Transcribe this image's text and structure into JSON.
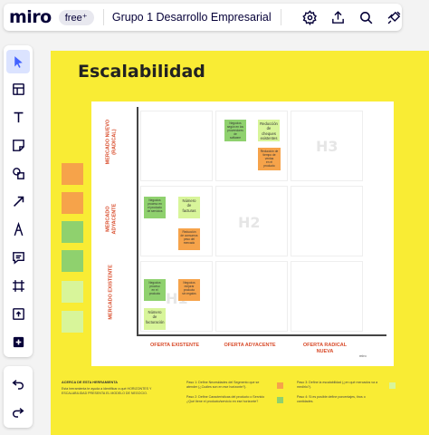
{
  "app": {
    "logo": "miro",
    "plan_badge": "free⁺",
    "board_title": "Grupo 1 Desarrollo Empresarial"
  },
  "topbar_icons": [
    "settings-icon",
    "share-upload-icon",
    "search-icon",
    "integrations-plug-icon"
  ],
  "tools": [
    "select-cursor-icon",
    "templates-icon",
    "text-tool-icon",
    "sticky-note-icon",
    "shapes-icon",
    "arrow-connector-icon",
    "pen-draw-icon",
    "comment-icon",
    "frame-icon",
    "upload-icon",
    "more-apps-icon"
  ],
  "history": [
    "undo-icon",
    "redo-icon"
  ],
  "frame": {
    "title": "Escalabilidad",
    "legend_colors": [
      "#f6a34a",
      "#f6a34a",
      "#8fd16e",
      "#8fd16e",
      "#d8f59a",
      "#d8f59a"
    ]
  },
  "matrix": {
    "rows": [
      "MERCADO NUEVO (RADICAL)",
      "MERCADO ADYACENTE",
      "MERCADO EXISTENTE"
    ],
    "cols": [
      "OFERTA EXISTENTE",
      "OFERTA ADYACENTE",
      "OFERTA RADICAL NUEVA"
    ],
    "h_labels": [
      "H3",
      "H2",
      "H1"
    ],
    "stickies": {
      "top_green": "Negocios\nsegún en los\nproveedores de\nsoftware",
      "top_light": "Reducción\nde\ncheques\nexistentes",
      "top_orange": "Reducción de\ntiempo de ventas\nen el\nproducto",
      "mid_green": "Negocios\nproceso en\nel producto\nde servicios",
      "mid_light": "Número\nde\nfacturas",
      "mid_orange": "Reducción\nde consumos\npeso del\nmercado",
      "low_green": "Negocios\nproceso\nen el\nproducto",
      "low_orange": "Negocios\nmejorar\nproducto\nsin regalos",
      "low_light": "Número\nde\nfacturación"
    },
    "signature": "miro"
  },
  "footer": {
    "about_title": "ACERCA DE ESTA HERRAMIENTA",
    "about_text": "Esta herramienta te ayuda a identificar a qué HORIZONTES Y ESCALABILIDAD PRESENTA EL MODELO DE NEGOCIO.",
    "step1": "Paso 1: Define Necesidades del Segmento que se atender (¿Cuáles son en ese horizonte?).",
    "step2": "Paso 2: Define Características del producto o Servicio ¿Qué tiene el producto/servicio en ese horizonte?",
    "step3": "Paso 3: Define la escalabilidad (¿en qué mercados va a medirlo?).",
    "step4": "Paso 4: Si es posible define porcentajes, tiros o cantidades."
  },
  "colors": {
    "orange": "#f6a34a",
    "green": "#8fd16e",
    "light_green": "#d8f59a",
    "frame_yellow": "#f9ec34",
    "axis_label_red": "#d84b2a",
    "toolbar_active": "#dbe3ff"
  }
}
